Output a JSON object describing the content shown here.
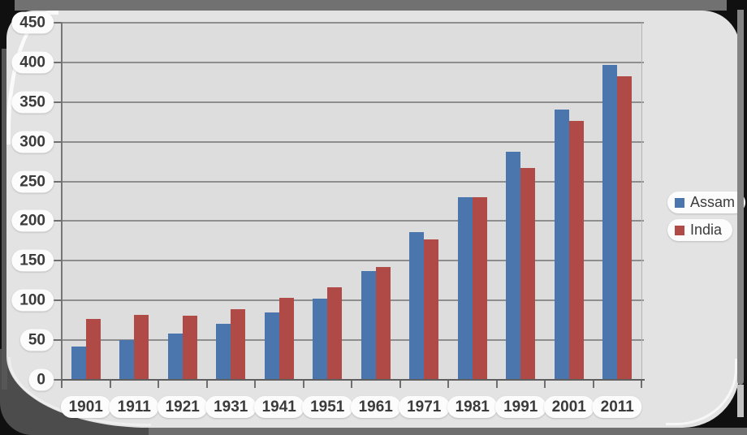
{
  "chart_data": {
    "type": "bar",
    "title": "",
    "xlabel": "",
    "ylabel": "",
    "categories": [
      "1901",
      "1911",
      "1921",
      "1931",
      "1941",
      "1951",
      "1961",
      "1971",
      "1981",
      "1991",
      "2001",
      "2011"
    ],
    "series": [
      {
        "name": "Assam",
        "color": "#4b76ad",
        "values": [
          42,
          50,
          58,
          71,
          85,
          102,
          137,
          186,
          230,
          287,
          341,
          397
        ]
      },
      {
        "name": "India",
        "color": "#b04a46",
        "values": [
          77,
          82,
          81,
          89,
          103,
          117,
          142,
          177,
          230,
          267,
          326,
          383
        ]
      }
    ],
    "ylim": [
      0,
      450
    ],
    "y_tick_step": 50,
    "y_tick_labels": [
      "0",
      "50",
      "100",
      "150",
      "200",
      "250",
      "300",
      "350",
      "400",
      "450"
    ],
    "grid": true,
    "legend_position": "right",
    "plot_background": "#dddddd",
    "gridline_color": "#8e8e8e"
  }
}
